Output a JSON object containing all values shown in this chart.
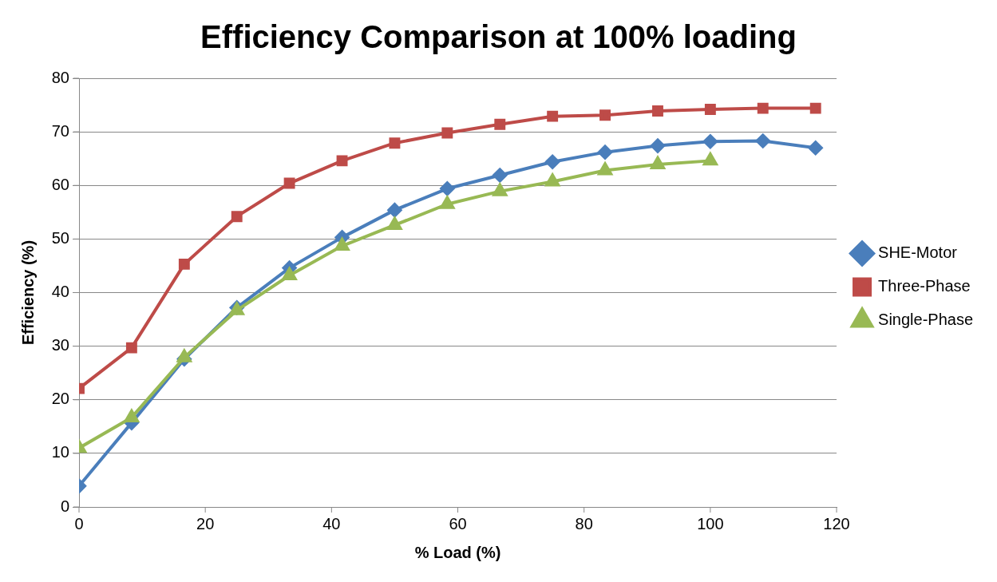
{
  "chart_data": {
    "type": "line",
    "title": "Efficiency Comparison at 100% loading",
    "xlabel": "% Load (%)",
    "ylabel": "Efficiency (%)",
    "x": [
      0,
      8.33,
      16.67,
      25,
      33.33,
      41.67,
      50,
      58.33,
      66.67,
      75,
      83.33,
      91.67,
      100,
      108.33,
      116.67
    ],
    "series": [
      {
        "name": "SHE-Motor",
        "color": "#4a7ebb",
        "marker": "diamond",
        "values": [
          3.9,
          15.7,
          27.6,
          37.2,
          44.6,
          50.3,
          55.4,
          59.4,
          61.9,
          64.4,
          66.2,
          67.4,
          68.2,
          68.3,
          67.0
        ]
      },
      {
        "name": "Three-Phase",
        "color": "#be4b48",
        "marker": "square",
        "values": [
          22.1,
          29.7,
          45.3,
          54.2,
          60.4,
          64.6,
          67.9,
          69.8,
          71.4,
          72.9,
          73.1,
          73.9,
          74.2,
          74.4,
          74.4
        ]
      },
      {
        "name": "Single-Phase",
        "color": "#98b954",
        "marker": "triangle",
        "values": [
          11.0,
          16.7,
          27.9,
          36.7,
          43.2,
          48.7,
          52.6,
          56.5,
          58.9,
          60.7,
          62.8,
          63.9,
          64.6,
          null,
          null
        ]
      }
    ],
    "xlim": [
      0,
      120
    ],
    "xticks": [
      0,
      20,
      40,
      60,
      80,
      100,
      120
    ],
    "ylim": [
      0,
      80
    ],
    "yticks": [
      0,
      10,
      20,
      30,
      40,
      50,
      60,
      70,
      80
    ],
    "grid": "y",
    "legend": "right",
    "line_style": "solid"
  }
}
